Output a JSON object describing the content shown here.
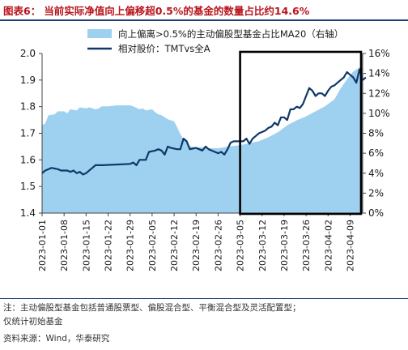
{
  "title": {
    "prefix": "图表6：",
    "text": "当前实际净值向上偏移超0.5%的基金的数量占比约14.6%"
  },
  "notes": {
    "line1": "注：主动偏股型基金包括普通股票型、偏股混合型、平衡混合型及灵活配置型；",
    "line2": "仅统计初始基金",
    "source": "资料来源：Wind，华泰研究"
  },
  "colors": {
    "area": "#9ed0ef",
    "line": "#0f3868",
    "frame": "#000000",
    "title": "#b8141c"
  },
  "chart_data": {
    "type": "line",
    "legend_position": "top-center",
    "grid": false,
    "x_tick_labels": [
      "2023-01-01",
      "2023-01-08",
      "2023-01-15",
      "2023-01-22",
      "2023-01-29",
      "2023-02-05",
      "2023-02-12",
      "2023-02-19",
      "2023-02-26",
      "2023-03-05",
      "2023-03-12",
      "2023-03-19",
      "2023-03-26",
      "2023-04-02",
      "2023-04-09"
    ],
    "xlim": [
      "2023-01-01",
      "2023-04-13"
    ],
    "y_left": {
      "lim": [
        1.4,
        2.0
      ],
      "ticks": [
        "1.4",
        "1.5",
        "1.6",
        "1.7",
        "1.8",
        "1.9",
        "2.0"
      ]
    },
    "y_right": {
      "lim": [
        0,
        16
      ],
      "ticks": [
        "0%",
        "2%",
        "4%",
        "6%",
        "8%",
        "10%",
        "12%",
        "14%",
        "16%"
      ]
    },
    "highlight_box": {
      "x_start": "2023-03-05",
      "x_end": "2023-04-13"
    },
    "series": [
      {
        "name": "向上偏离>0.5%的主动偏股型基金占比MA20（右轴）",
        "kind": "area",
        "axis": "right",
        "points": [
          [
            "2023-01-01",
            8.8
          ],
          [
            "2023-01-02",
            9.0
          ],
          [
            "2023-01-03",
            9.8
          ],
          [
            "2023-01-05",
            9.9
          ],
          [
            "2023-01-06",
            10.2
          ],
          [
            "2023-01-08",
            10.2
          ],
          [
            "2023-01-09",
            10.0
          ],
          [
            "2023-01-10",
            10.4
          ],
          [
            "2023-01-12",
            10.3
          ],
          [
            "2023-01-13",
            10.6
          ],
          [
            "2023-01-15",
            10.5
          ],
          [
            "2023-01-16",
            10.6
          ],
          [
            "2023-01-18",
            10.4
          ],
          [
            "2023-01-19",
            10.5
          ],
          [
            "2023-01-20",
            10.7
          ],
          [
            "2023-01-22",
            10.7
          ],
          [
            "2023-01-25",
            10.8
          ],
          [
            "2023-01-27",
            10.8
          ],
          [
            "2023-01-29",
            10.8
          ],
          [
            "2023-01-30",
            10.7
          ],
          [
            "2023-02-01",
            10.4
          ],
          [
            "2023-02-02",
            10.5
          ],
          [
            "2023-02-03",
            10.3
          ],
          [
            "2023-02-05",
            10.4
          ],
          [
            "2023-02-06",
            10.1
          ],
          [
            "2023-02-07",
            9.9
          ],
          [
            "2023-02-08",
            9.8
          ],
          [
            "2023-02-09",
            9.6
          ],
          [
            "2023-02-10",
            9.4
          ],
          [
            "2023-02-12",
            9.2
          ],
          [
            "2023-02-13",
            8.6
          ],
          [
            "2023-02-14",
            7.9
          ],
          [
            "2023-02-15",
            7.4
          ],
          [
            "2023-02-16",
            7.1
          ],
          [
            "2023-02-17",
            6.7
          ],
          [
            "2023-02-19",
            6.6
          ],
          [
            "2023-02-21",
            6.6
          ],
          [
            "2023-02-23",
            6.5
          ],
          [
            "2023-02-26",
            6.5
          ],
          [
            "2023-02-28",
            6.6
          ],
          [
            "2023-03-02",
            6.7
          ],
          [
            "2023-03-05",
            6.8
          ],
          [
            "2023-03-08",
            7.0
          ],
          [
            "2023-03-11",
            7.2
          ],
          [
            "2023-03-14",
            7.6
          ],
          [
            "2023-03-17",
            8.1
          ],
          [
            "2023-03-20",
            8.8
          ],
          [
            "2023-03-23",
            9.3
          ],
          [
            "2023-03-26",
            9.7
          ],
          [
            "2023-03-29",
            10.2
          ],
          [
            "2023-04-01",
            10.7
          ],
          [
            "2023-04-04",
            11.4
          ],
          [
            "2023-04-06",
            12.5
          ],
          [
            "2023-04-08",
            13.4
          ],
          [
            "2023-04-10",
            14.2
          ],
          [
            "2023-04-12",
            14.6
          ],
          [
            "2023-04-13",
            14.6
          ]
        ]
      },
      {
        "name": "相对股价：TMTvs全A",
        "kind": "line",
        "axis": "left",
        "points": [
          [
            "2023-01-01",
            1.55
          ],
          [
            "2023-01-02",
            1.56
          ],
          [
            "2023-01-04",
            1.57
          ],
          [
            "2023-01-06",
            1.565
          ],
          [
            "2023-01-07",
            1.56
          ],
          [
            "2023-01-09",
            1.56
          ],
          [
            "2023-01-10",
            1.555
          ],
          [
            "2023-01-11",
            1.56
          ],
          [
            "2023-01-12",
            1.55
          ],
          [
            "2023-01-13",
            1.555
          ],
          [
            "2023-01-14",
            1.545
          ],
          [
            "2023-01-15",
            1.55
          ],
          [
            "2023-01-17",
            1.57
          ],
          [
            "2023-01-18",
            1.58
          ],
          [
            "2023-01-20",
            1.58
          ],
          [
            "2023-01-29",
            1.585
          ],
          [
            "2023-01-30",
            1.59
          ],
          [
            "2023-01-31",
            1.58
          ],
          [
            "2023-02-01",
            1.6
          ],
          [
            "2023-02-03",
            1.6
          ],
          [
            "2023-02-04",
            1.63
          ],
          [
            "2023-02-06",
            1.635
          ],
          [
            "2023-02-07",
            1.64
          ],
          [
            "2023-02-08",
            1.635
          ],
          [
            "2023-02-09",
            1.62
          ],
          [
            "2023-02-10",
            1.65
          ],
          [
            "2023-02-11",
            1.645
          ],
          [
            "2023-02-13",
            1.64
          ],
          [
            "2023-02-14",
            1.64
          ],
          [
            "2023-02-15",
            1.68
          ],
          [
            "2023-02-16",
            1.67
          ],
          [
            "2023-02-17",
            1.64
          ],
          [
            "2023-02-19",
            1.645
          ],
          [
            "2023-02-20",
            1.64
          ],
          [
            "2023-02-21",
            1.635
          ],
          [
            "2023-02-22",
            1.65
          ],
          [
            "2023-02-23",
            1.64
          ],
          [
            "2023-02-25",
            1.63
          ],
          [
            "2023-02-26",
            1.625
          ],
          [
            "2023-02-27",
            1.63
          ],
          [
            "2023-02-28",
            1.62
          ],
          [
            "2023-03-01",
            1.64
          ],
          [
            "2023-03-02",
            1.665
          ],
          [
            "2023-03-03",
            1.67
          ],
          [
            "2023-03-05",
            1.67
          ],
          [
            "2023-03-06",
            1.67
          ],
          [
            "2023-03-07",
            1.68
          ],
          [
            "2023-03-08",
            1.66
          ],
          [
            "2023-03-09",
            1.68
          ],
          [
            "2023-03-10",
            1.69
          ],
          [
            "2023-03-11",
            1.7
          ],
          [
            "2023-03-12",
            1.705
          ],
          [
            "2023-03-13",
            1.71
          ],
          [
            "2023-03-14",
            1.72
          ],
          [
            "2023-03-15",
            1.725
          ],
          [
            "2023-03-16",
            1.74
          ],
          [
            "2023-03-17",
            1.73
          ],
          [
            "2023-03-18",
            1.76
          ],
          [
            "2023-03-19",
            1.76
          ],
          [
            "2023-03-20",
            1.75
          ],
          [
            "2023-03-21",
            1.79
          ],
          [
            "2023-03-22",
            1.79
          ],
          [
            "2023-03-23",
            1.8
          ],
          [
            "2023-03-24",
            1.795
          ],
          [
            "2023-03-25",
            1.81
          ],
          [
            "2023-03-26",
            1.84
          ],
          [
            "2023-03-27",
            1.87
          ],
          [
            "2023-03-28",
            1.86
          ],
          [
            "2023-03-29",
            1.84
          ],
          [
            "2023-03-30",
            1.85
          ],
          [
            "2023-03-31",
            1.85
          ],
          [
            "2023-04-01",
            1.84
          ],
          [
            "2023-04-02",
            1.86
          ],
          [
            "2023-04-03",
            1.875
          ],
          [
            "2023-04-04",
            1.88
          ],
          [
            "2023-04-05",
            1.89
          ],
          [
            "2023-04-06",
            1.9
          ],
          [
            "2023-04-07",
            1.91
          ],
          [
            "2023-04-08",
            1.93
          ],
          [
            "2023-04-09",
            1.92
          ],
          [
            "2023-04-10",
            1.91
          ],
          [
            "2023-04-11",
            1.89
          ],
          [
            "2023-04-12",
            1.94
          ],
          [
            "2023-04-13",
            1.9
          ],
          [
            "2023-04-14",
            1.91
          ]
        ]
      }
    ]
  }
}
